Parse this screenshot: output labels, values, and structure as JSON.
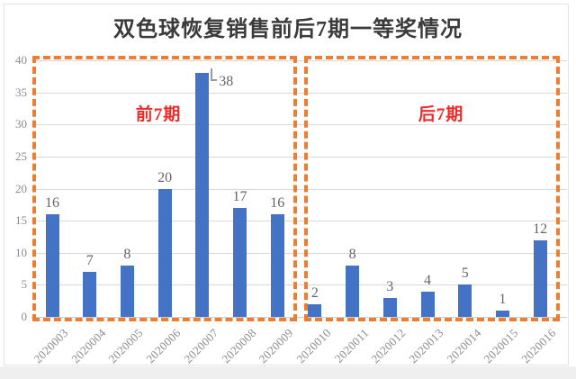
{
  "chart_data": {
    "type": "bar",
    "title": "双色球恢复销售前后7期一等奖情况",
    "categories": [
      "2020003",
      "2020004",
      "2020005",
      "2020006",
      "2020007",
      "2020008",
      "2020009",
      "2020010",
      "2020011",
      "2020012",
      "2020013",
      "2020014",
      "2020015",
      "2020016"
    ],
    "values": [
      16,
      7,
      8,
      20,
      38,
      17,
      16,
      2,
      8,
      3,
      4,
      5,
      1,
      12
    ],
    "xlabel": "",
    "ylabel": "",
    "ylim": [
      0,
      40
    ],
    "y_ticks": [
      0,
      5,
      10,
      15,
      20,
      25,
      30,
      35,
      40
    ],
    "grid": true,
    "legend": "none",
    "bar_color": "#4472C4",
    "value_label_color": "#666666",
    "axis_tick_color": "#8C8C8C",
    "gridline_color": "#D9D9D9",
    "callout": {
      "category": "2020007",
      "value": 38
    },
    "group_boxes": [
      {
        "label": "前7期",
        "from": "2020003",
        "to": "2020009",
        "border_color": "#ED7D31",
        "label_color": "#EE2B2B"
      },
      {
        "label": "后7期",
        "from": "2020010",
        "to": "2020016",
        "border_color": "#ED7D31",
        "label_color": "#EE2B2B"
      }
    ]
  }
}
